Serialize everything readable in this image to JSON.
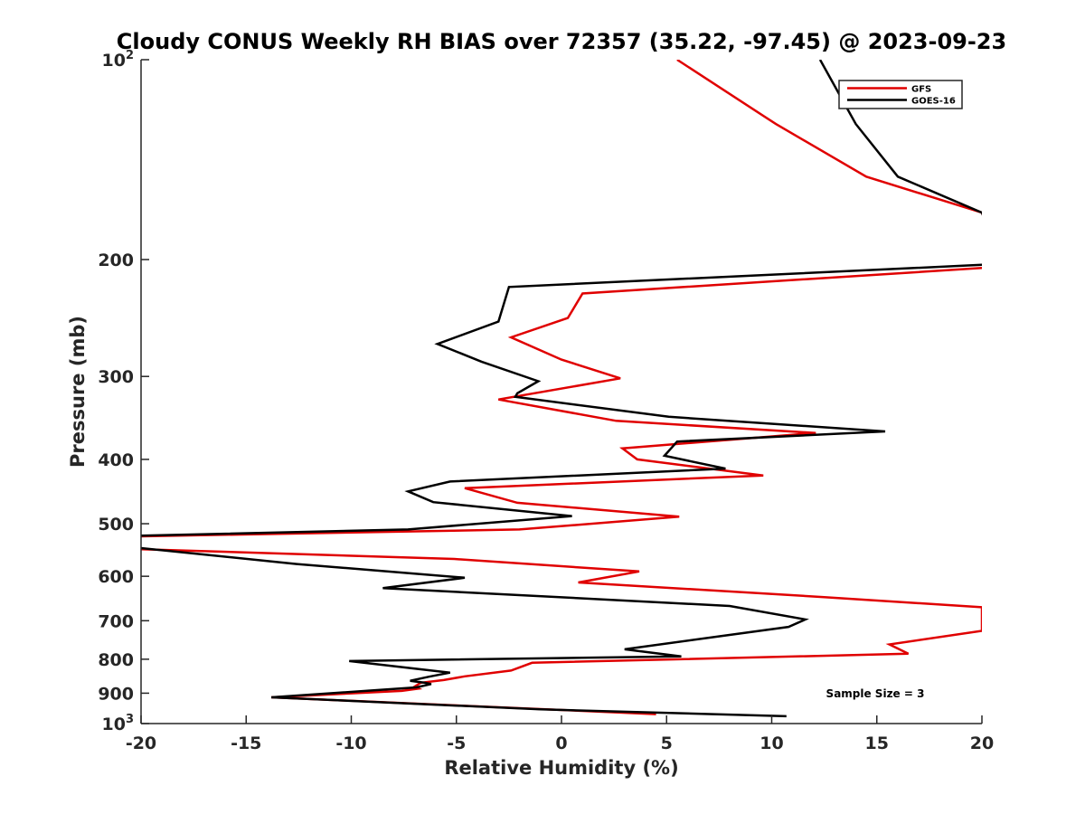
{
  "chart_data": {
    "type": "line",
    "title": "Cloudy CONUS Weekly RH BIAS over 72357 (35.22, -97.45) @ 2023-09-23",
    "xlabel": "Relative Humidity (%)",
    "ylabel": "Pressure (mb)",
    "xlim": [
      -20,
      20
    ],
    "ylim": [
      100,
      1000
    ],
    "y_scale": "log",
    "y_reversed": true,
    "grid": false,
    "legend_position": "top-right",
    "x_ticks": [
      -20,
      -15,
      -10,
      -5,
      0,
      5,
      10,
      15,
      20
    ],
    "x_tick_labels": [
      "-20",
      "-15",
      "-10",
      "-5",
      "0",
      "5",
      "10",
      "15",
      "20"
    ],
    "y_ticks": [
      {
        "value": 100,
        "base": "10",
        "exp": "2"
      },
      {
        "value": 200,
        "label": "200"
      },
      {
        "value": 300,
        "label": "300"
      },
      {
        "value": 400,
        "label": "400"
      },
      {
        "value": 500,
        "label": "500"
      },
      {
        "value": 600,
        "label": "600"
      },
      {
        "value": 700,
        "label": "700"
      },
      {
        "value": 800,
        "label": "800"
      },
      {
        "value": 900,
        "label": "900"
      },
      {
        "value": 1000,
        "base": "10",
        "exp": "3"
      }
    ],
    "series": [
      {
        "name": "GFS",
        "color": "#e00000",
        "points": [
          [
            5.5,
            100
          ],
          [
            10.2,
            125
          ],
          [
            14.5,
            150
          ],
          [
            20,
            170
          ],
          [
            21,
            205
          ],
          [
            1.0,
            225
          ],
          [
            0.3,
            245
          ],
          [
            -2.4,
            262
          ],
          [
            0,
            283
          ],
          [
            2.8,
            302
          ],
          [
            -3.0,
            325
          ],
          [
            2.6,
            350
          ],
          [
            12.1,
            365
          ],
          [
            2.9,
            385
          ],
          [
            3.6,
            400
          ],
          [
            9.6,
            423
          ],
          [
            -4.6,
            442
          ],
          [
            -2.1,
            465
          ],
          [
            5.6,
            488
          ],
          [
            -2.0,
            510
          ],
          [
            -21,
            523
          ],
          [
            -21,
            545
          ],
          [
            -5.1,
            565
          ],
          [
            3.7,
            590
          ],
          [
            0.8,
            613
          ],
          [
            12.5,
            645
          ],
          [
            20,
            668
          ],
          [
            20,
            725
          ],
          [
            15.6,
            760
          ],
          [
            16.5,
            785
          ],
          [
            -1.4,
            810
          ],
          [
            -2.4,
            832
          ],
          [
            -4.6,
            849
          ],
          [
            -5.6,
            860
          ],
          [
            -6.7,
            868
          ],
          [
            -7.0,
            880
          ],
          [
            -6.8,
            886
          ],
          [
            -7.6,
            893
          ],
          [
            -13.8,
            913
          ],
          [
            4.5,
            968
          ]
        ]
      },
      {
        "name": "GOES-16",
        "color": "#000000",
        "points": [
          [
            12.3,
            100
          ],
          [
            14.0,
            125
          ],
          [
            16.0,
            150
          ],
          [
            20,
            170
          ],
          [
            21,
            203
          ],
          [
            -2.5,
            220
          ],
          [
            -3.0,
            248
          ],
          [
            -5.9,
            268
          ],
          [
            -3.8,
            285
          ],
          [
            -1.1,
            305
          ],
          [
            -2.1,
            318
          ],
          [
            -2.2,
            322
          ],
          [
            5.1,
            345
          ],
          [
            15.4,
            363
          ],
          [
            5.5,
            376
          ],
          [
            4.9,
            395
          ],
          [
            7.8,
            413
          ],
          [
            -5.3,
            432
          ],
          [
            -7.3,
            447
          ],
          [
            -6.1,
            464
          ],
          [
            0.5,
            487
          ],
          [
            -7.3,
            510
          ],
          [
            -21,
            522
          ],
          [
            -21,
            540
          ],
          [
            -12.6,
            575
          ],
          [
            -4.6,
            603
          ],
          [
            -8.5,
            625
          ],
          [
            8.0,
            665
          ],
          [
            11.6,
            697
          ],
          [
            10.8,
            715
          ],
          [
            7.6,
            738
          ],
          [
            3.0,
            773
          ],
          [
            5.7,
            792
          ],
          [
            -10.1,
            805
          ],
          [
            -5.3,
            838
          ],
          [
            -6.3,
            850
          ],
          [
            -7.2,
            862
          ],
          [
            -6.5,
            868
          ],
          [
            -6.2,
            872
          ],
          [
            -6.9,
            882
          ],
          [
            -13.8,
            913
          ],
          [
            -1.0,
            952
          ],
          [
            10.7,
            975
          ]
        ]
      }
    ],
    "annotations": [
      {
        "text": "Sample Size = 3"
      }
    ]
  },
  "colors": {
    "gfs": "#e00000",
    "goes16": "#000000",
    "axis": "#262626"
  }
}
